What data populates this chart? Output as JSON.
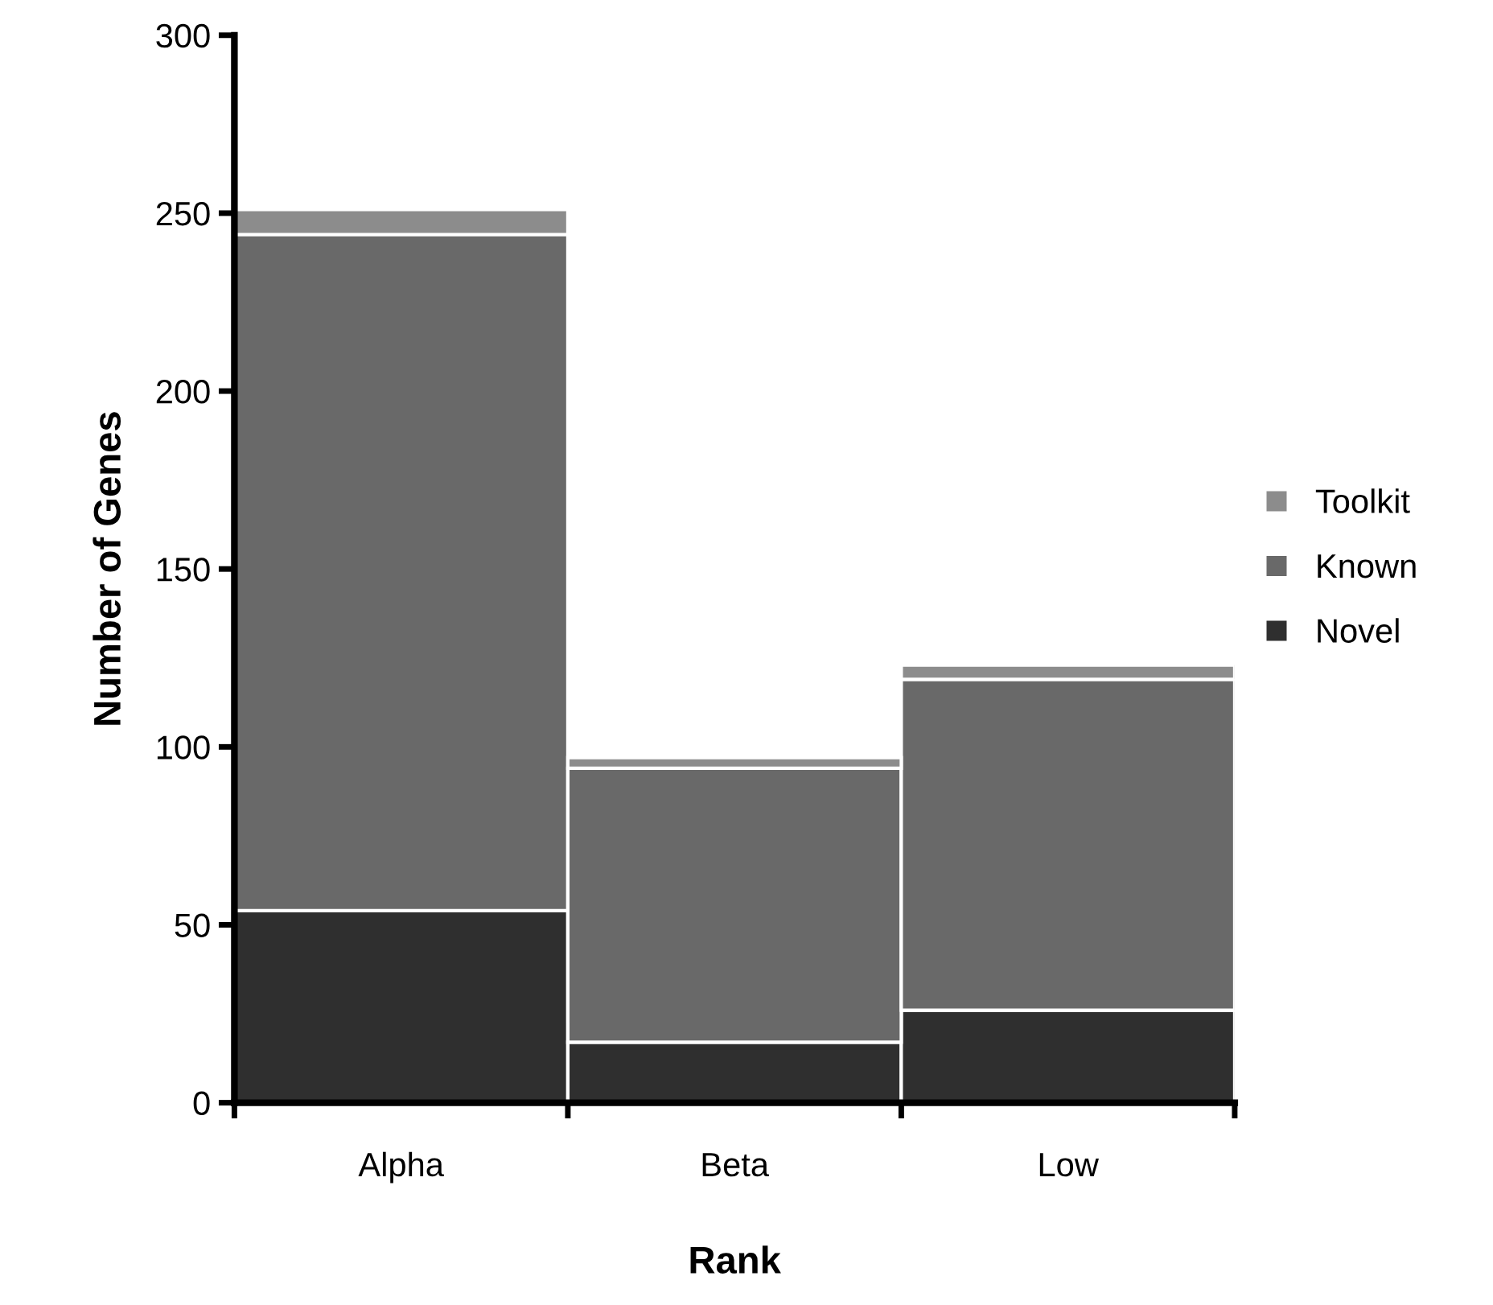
{
  "chart_data": {
    "type": "bar",
    "stacked": true,
    "xlabel": "Rank",
    "ylabel": "Number of Genes",
    "categories": [
      "Alpha",
      "Beta",
      "Low"
    ],
    "series": [
      {
        "name": "Novel",
        "color": "#2f2f2f",
        "values": [
          54,
          17,
          26
        ]
      },
      {
        "name": "Known",
        "color": "#696969",
        "values": [
          190,
          77,
          93
        ]
      },
      {
        "name": "Toolkit",
        "color": "#8c8c8c",
        "values": [
          7,
          3,
          4
        ]
      }
    ],
    "ylim": [
      0,
      300
    ],
    "yticks": [
      0,
      50,
      100,
      150,
      200,
      250,
      300
    ],
    "grid": false,
    "legend": "right"
  }
}
